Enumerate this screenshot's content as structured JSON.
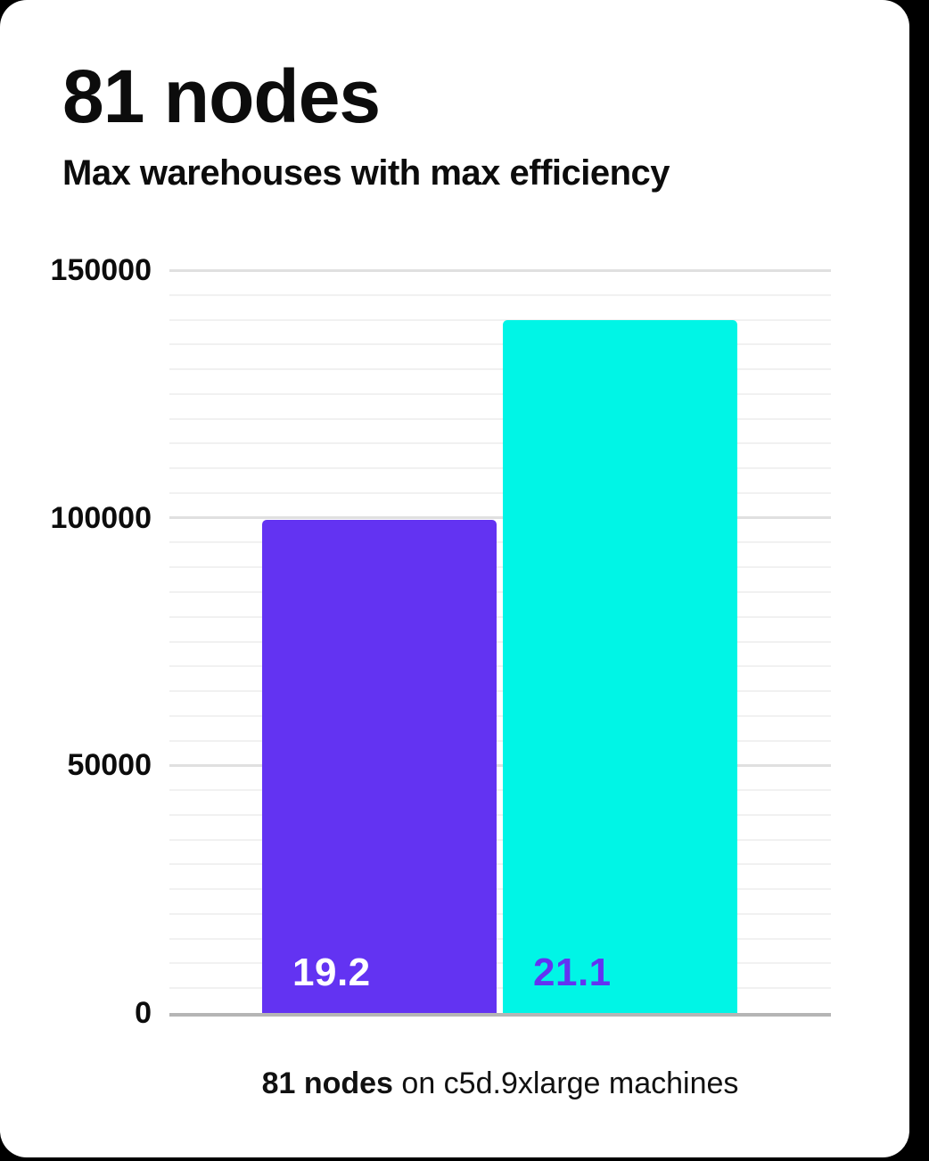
{
  "header": {
    "title": "81 nodes",
    "subtitle": "Max warehouses with max efficiency"
  },
  "caption": {
    "highlight": "81 nodes",
    "rest": " on c5d.9xlarge machines"
  },
  "colors": {
    "background": "#000000",
    "card": "#ffffff",
    "purple": "#6333f2",
    "cyan": "#00f5e6",
    "axis_line": "#b5b5b5",
    "major_gridline": "#e0e0e0",
    "minor_gridline": "#f1f1f1",
    "text": "#0c0c0c"
  },
  "chart_data": {
    "type": "bar",
    "title": "81 nodes",
    "subtitle": "Max warehouses with max efficiency",
    "categories": [
      "19.2",
      "21.1"
    ],
    "values": [
      99500,
      140000
    ],
    "bar_labels": [
      "19.2",
      "21.1"
    ],
    "bar_colors": [
      "#6333f2",
      "#00f5e6"
    ],
    "bar_label_colors": [
      "#ffffff",
      "#6333f2"
    ],
    "xlabel": "81 nodes on c5d.9xlarge machines",
    "ylabel": "",
    "ylim": [
      0,
      150000
    ],
    "yticks": [
      0,
      50000,
      100000,
      150000
    ],
    "ytick_labels": [
      "0",
      "50000",
      "100000",
      "150000"
    ],
    "minor_gridline_step": 5000,
    "major_gridline_step": 50000,
    "grid": true,
    "legend": false
  }
}
